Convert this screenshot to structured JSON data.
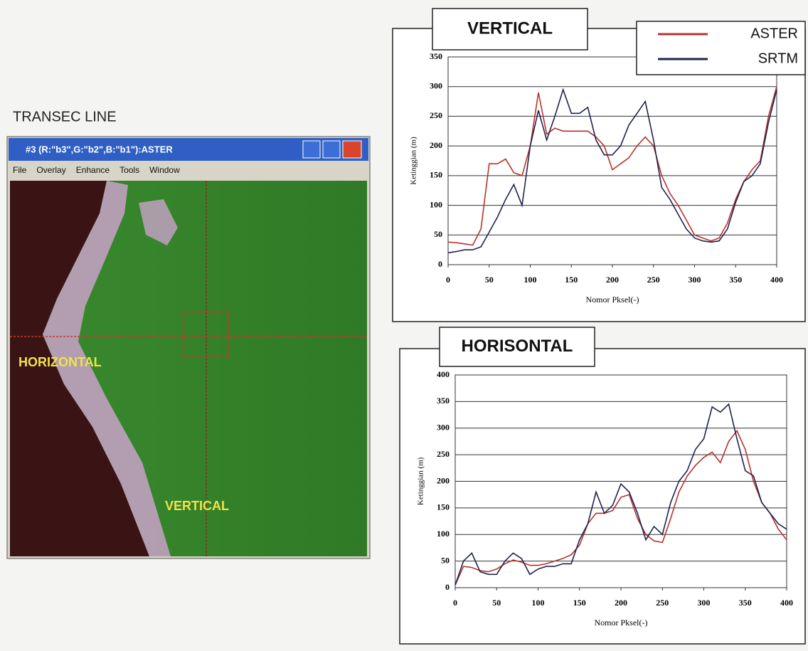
{
  "screenshot": {
    "heading": "TRANSEC LINE",
    "window_title": "#3 (R:\"b3\",G:\"b2\",B:\"b1\"):ASTER",
    "menu": [
      "File",
      "Overlay",
      "Enhance",
      "Tools",
      "Window"
    ],
    "labels": [
      "HORIZONTAL",
      "VERTICAL"
    ]
  },
  "chart_data": [
    {
      "type": "line",
      "title": "VERTICAL",
      "xlabel": "Nomor Pksel(-)",
      "ylabel": "Ketinggian (m)",
      "x": [
        0,
        10,
        20,
        30,
        40,
        50,
        60,
        70,
        80,
        90,
        100,
        110,
        120,
        130,
        140,
        150,
        160,
        170,
        180,
        190,
        200,
        210,
        220,
        230,
        240,
        250,
        260,
        270,
        280,
        290,
        300,
        310,
        320,
        330,
        340,
        350,
        360,
        370,
        380,
        390,
        400
      ],
      "series": [
        {
          "name": "ASTER",
          "color": "#b8322a",
          "values": [
            38,
            37,
            35,
            33,
            60,
            170,
            170,
            178,
            155,
            150,
            200,
            290,
            220,
            230,
            225,
            225,
            225,
            225,
            215,
            200,
            160,
            170,
            180,
            200,
            215,
            200,
            150,
            120,
            100,
            75,
            50,
            45,
            40,
            45,
            70,
            110,
            140,
            160,
            175,
            250,
            300
          ]
        },
        {
          "name": "SRTM",
          "color": "#1e2450",
          "values": [
            20,
            22,
            25,
            25,
            30,
            55,
            80,
            110,
            135,
            100,
            200,
            260,
            210,
            250,
            295,
            255,
            255,
            265,
            210,
            185,
            185,
            200,
            235,
            255,
            275,
            210,
            130,
            110,
            85,
            60,
            45,
            40,
            38,
            40,
            60,
            105,
            140,
            150,
            170,
            240,
            295
          ]
        }
      ],
      "xlim": [
        0,
        400
      ],
      "xticks": [
        0,
        50,
        100,
        150,
        200,
        250,
        300,
        350,
        400
      ],
      "ylim": [
        0,
        350
      ],
      "yticks": [
        0,
        50,
        100,
        150,
        200,
        250,
        300,
        350
      ],
      "grid": true,
      "legend": "top-right"
    },
    {
      "type": "line",
      "title": "HORISONTAL",
      "xlabel": "Nomor Pksel(-)",
      "ylabel": "Ketinggian (m)",
      "x": [
        0,
        10,
        20,
        30,
        40,
        50,
        60,
        70,
        80,
        90,
        100,
        110,
        120,
        130,
        140,
        150,
        160,
        170,
        180,
        190,
        200,
        210,
        220,
        230,
        240,
        250,
        260,
        270,
        280,
        290,
        300,
        310,
        320,
        330,
        340,
        350,
        360,
        370,
        380,
        390,
        400
      ],
      "series": [
        {
          "color": "#b8322a",
          "values": [
            5,
            40,
            38,
            32,
            30,
            35,
            45,
            52,
            48,
            42,
            42,
            45,
            50,
            55,
            62,
            80,
            120,
            140,
            140,
            145,
            170,
            175,
            130,
            100,
            88,
            85,
            130,
            180,
            210,
            230,
            245,
            255,
            235,
            275,
            295,
            260,
            200,
            160,
            140,
            110,
            90
          ]
        },
        {
          "color": "#1e2450",
          "values": [
            5,
            50,
            65,
            30,
            25,
            25,
            50,
            65,
            55,
            25,
            35,
            40,
            40,
            45,
            45,
            90,
            120,
            180,
            140,
            155,
            195,
            180,
            140,
            90,
            115,
            100,
            160,
            200,
            220,
            260,
            280,
            340,
            330,
            345,
            280,
            220,
            210,
            160,
            140,
            120,
            110
          ]
        }
      ],
      "xlim": [
        0,
        400
      ],
      "xticks": [
        0,
        50,
        100,
        150,
        200,
        250,
        300,
        350,
        400
      ],
      "ylim": [
        0,
        400
      ],
      "yticks": [
        0,
        50,
        100,
        150,
        200,
        250,
        300,
        350,
        400
      ],
      "grid": true
    }
  ]
}
